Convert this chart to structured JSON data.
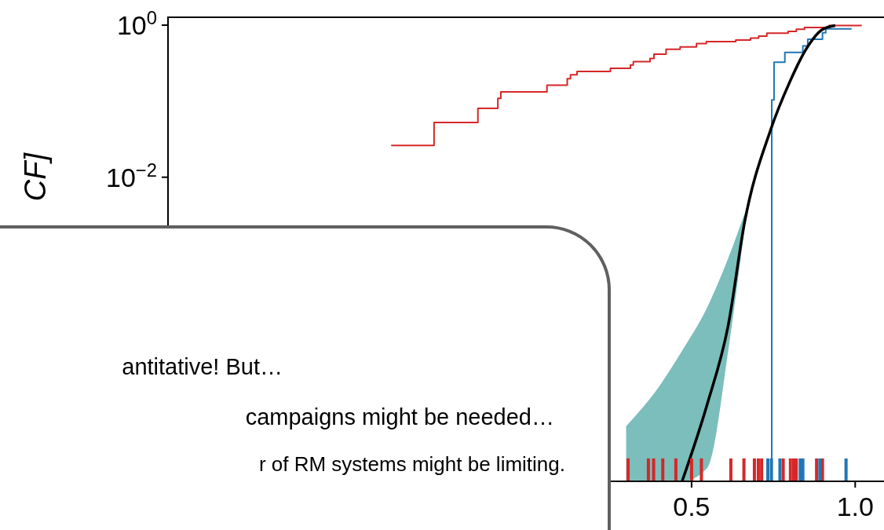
{
  "chart_data": {
    "type": "step",
    "ylabel": "CF]",
    "log": true,
    "xlim": [
      -1.1,
      1.1
    ],
    "xticks": [
      0.5,
      {
        "value": 1.0,
        "label": "1.0"
      }
    ],
    "ylim": [
      1e-06,
      1.27
    ],
    "yticks": [
      {
        "value": 1,
        "label": "10$^{0}$"
      },
      {
        "value": 0.01,
        "label": "10$^{−2}$"
      }
    ],
    "series": [
      {
        "color": "#d62728",
        "x": [
          -0.418,
          -0.287,
          -0.153,
          -0.092,
          -0.083,
          0.058,
          0.12,
          0.13,
          0.15,
          0.252,
          0.313,
          0.322,
          0.373,
          0.385,
          0.422,
          0.465,
          0.515,
          0.545,
          0.635,
          0.68,
          0.705,
          0.73,
          0.795,
          0.82,
          0.845,
          0.92,
          1.02
        ],
        "values": [
          0.0262,
          0.0526,
          0.0807,
          0.109,
          0.133,
          0.162,
          0.197,
          0.222,
          0.246,
          0.271,
          0.3,
          0.331,
          0.365,
          0.416,
          0.483,
          0.518,
          0.572,
          0.607,
          0.639,
          0.678,
          0.719,
          0.786,
          0.826,
          0.886,
          0.931,
          0.988,
          0.988
        ]
      },
      {
        "color": "#1f77b4",
        "x": [
          0.74,
          0.745,
          0.752,
          0.785,
          0.84,
          0.855,
          0.9,
          0.91,
          0.989
        ],
        "values": [
          1e-06,
          0.104,
          0.326,
          0.437,
          0.534,
          0.651,
          0.793,
          0.894,
          0.894
        ]
      },
      {
        "type": "line",
        "color": "#000000",
        "x": [
          0.3,
          0.4,
          0.471,
          0.548,
          0.612,
          0.663,
          0.74,
          0.8,
          0.85,
          0.9,
          0.939
        ],
        "values": [
          null,
          null,
          1e-06,
          1.04e-05,
          0.000113,
          0.00269,
          0.0402,
          0.179,
          0.483,
          0.877,
          0.988
        ],
        "lower": [
          1e-06,
          1e-06,
          1e-06,
          1.5e-06,
          5.2e-05,
          0.0024,
          null,
          null,
          null,
          null,
          null
        ],
        "upper": [
          5.3e-06,
          1.75e-05,
          5.2e-05,
          0.000195,
          0.00086,
          0.0034,
          null,
          null,
          null,
          null,
          null
        ]
      },
      {
        "type": "bar",
        "color": "#d62728",
        "x": [
          0.306,
          0.368,
          0.384,
          0.412,
          0.452,
          0.5,
          0.53,
          0.62,
          0.66,
          0.692,
          0.704,
          0.714,
          0.78,
          0.802,
          0.812,
          0.82,
          0.882,
          0.9
        ],
        "values": [
          2e-06,
          2e-06,
          2e-06,
          2e-06,
          2e-06,
          2e-06,
          2e-06,
          2e-06,
          2e-06,
          2e-06,
          2e-06,
          2e-06,
          2e-06,
          2e-06,
          2e-06,
          2e-06,
          2e-06,
          2e-06
        ]
      },
      {
        "type": "bar",
        "color": "#1f77b4",
        "x": [
          0.733,
          0.744,
          0.77,
          0.832,
          0.84,
          0.892,
          0.972
        ],
        "values": [
          2e-06,
          2e-06,
          2e-06,
          2e-06,
          2e-06,
          2e-06,
          2e-06
        ]
      }
    ],
    "annotations": [
      "antitative! But…",
      "campaigns might be needed…",
      "r of RM systems might be limiting."
    ]
  }
}
